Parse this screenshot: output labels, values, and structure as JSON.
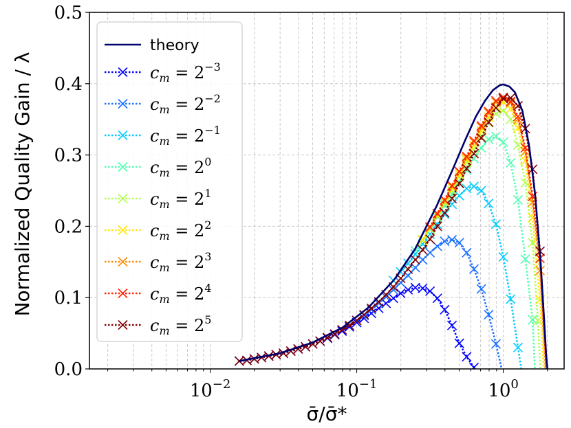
{
  "chart_data": {
    "type": "line",
    "xlabel": "σ̄/σ̄*",
    "ylabel": "Normalized Quality Gain / λ",
    "xscale": "log",
    "xlim": [
      0.0015,
      2.6
    ],
    "ylim": [
      0,
      0.5
    ],
    "x_ticks": [
      {
        "value": 0.01,
        "base": "10",
        "exp": "−2"
      },
      {
        "value": 0.1,
        "base": "10",
        "exp": "−1"
      },
      {
        "value": 1,
        "base": "10",
        "exp": "0"
      }
    ],
    "y_ticks": [
      {
        "value": 0.0,
        "label": "0.0"
      },
      {
        "value": 0.1,
        "label": "0.1"
      },
      {
        "value": 0.2,
        "label": "0.2"
      },
      {
        "value": 0.3,
        "label": "0.3"
      },
      {
        "value": 0.4,
        "label": "0.4"
      },
      {
        "value": 0.5,
        "label": "0.5"
      }
    ],
    "grid": true,
    "legend_position": "top-left",
    "theory": {
      "name": "theory",
      "color": "#00006e",
      "x": [
        0.0158,
        0.03,
        0.05,
        0.08,
        0.12,
        0.18,
        0.25,
        0.35,
        0.45,
        0.55,
        0.65,
        0.75,
        0.85,
        0.95,
        1.0,
        1.1,
        1.2,
        1.35,
        1.5,
        1.65,
        1.8,
        1.9,
        1.96,
        2.0
      ],
      "y": [
        0.011,
        0.022,
        0.037,
        0.058,
        0.086,
        0.125,
        0.168,
        0.228,
        0.279,
        0.321,
        0.354,
        0.376,
        0.391,
        0.398,
        0.399,
        0.396,
        0.388,
        0.362,
        0.313,
        0.244,
        0.147,
        0.068,
        0.02,
        0.0
      ]
    },
    "series": [
      {
        "name_base": "2",
        "name_exp": "−3",
        "color": "#0000ff",
        "x": [
          0.0158,
          0.0178,
          0.02,
          0.0224,
          0.0251,
          0.0282,
          0.0316,
          0.0355,
          0.0398,
          0.0447,
          0.0501,
          0.0562,
          0.0631,
          0.0708,
          0.0794,
          0.0891,
          0.1,
          0.1122,
          0.1259,
          0.1413,
          0.1585,
          0.1778,
          0.1995,
          0.2239,
          0.2512,
          0.2818,
          0.3162,
          0.3548,
          0.3981,
          0.4467,
          0.5012,
          0.5623,
          0.631,
          0.7079
        ],
        "y": [
          0.011,
          0.012,
          0.014,
          0.016,
          0.018,
          0.02,
          0.022,
          0.025,
          0.028,
          0.031,
          0.035,
          0.039,
          0.043,
          0.048,
          0.053,
          0.059,
          0.065,
          0.071,
          0.078,
          0.085,
          0.092,
          0.099,
          0.106,
          0.111,
          0.114,
          0.113,
          0.109,
          0.099,
          0.083,
          0.061,
          0.036,
          0.017,
          0.002,
          -0.01
        ]
      },
      {
        "name_base": "2",
        "name_exp": "−2",
        "color": "#1a70ff",
        "x": [
          0.1,
          0.1122,
          0.1259,
          0.1413,
          0.1585,
          0.1778,
          0.1995,
          0.2239,
          0.2512,
          0.2818,
          0.3162,
          0.3548,
          0.3981,
          0.4467,
          0.5012,
          0.5623,
          0.631,
          0.7079,
          0.7943,
          0.8913,
          1.0
        ],
        "y": [
          0.068,
          0.075,
          0.083,
          0.092,
          0.101,
          0.111,
          0.121,
          0.131,
          0.142,
          0.153,
          0.163,
          0.172,
          0.179,
          0.181,
          0.177,
          0.163,
          0.14,
          0.112,
          0.076,
          0.035,
          -0.01
        ]
      },
      {
        "name_base": "2",
        "name_exp": "−1",
        "color": "#00ccff",
        "x": [
          0.1778,
          0.1995,
          0.2239,
          0.2512,
          0.2818,
          0.3162,
          0.3548,
          0.3981,
          0.4467,
          0.5012,
          0.5623,
          0.631,
          0.7079,
          0.7943,
          0.8913,
          1.0,
          1.122,
          1.259,
          1.35
        ],
        "y": [
          0.124,
          0.136,
          0.148,
          0.161,
          0.175,
          0.189,
          0.203,
          0.217,
          0.231,
          0.243,
          0.253,
          0.256,
          0.25,
          0.232,
          0.203,
          0.157,
          0.098,
          0.03,
          -0.01
        ]
      },
      {
        "name_base": "2",
        "name_exp": "0",
        "color": "#4dffb0",
        "x": [
          0.2512,
          0.2818,
          0.3162,
          0.3548,
          0.3981,
          0.4467,
          0.5012,
          0.5623,
          0.631,
          0.7079,
          0.7943,
          0.8913,
          1.0,
          1.122,
          1.259,
          1.413,
          1.585,
          1.65
        ],
        "y": [
          0.166,
          0.181,
          0.196,
          0.213,
          0.229,
          0.245,
          0.262,
          0.279,
          0.295,
          0.31,
          0.322,
          0.326,
          0.318,
          0.289,
          0.237,
          0.154,
          0.069,
          -0.01
        ]
      },
      {
        "name_base": "2",
        "name_exp": "1",
        "color": "#b0ff4d",
        "x": [
          0.2818,
          0.3162,
          0.3548,
          0.3981,
          0.4467,
          0.5012,
          0.5623,
          0.631,
          0.7079,
          0.7943,
          0.8913,
          1.0,
          1.122,
          1.259,
          1.413,
          1.585,
          1.72,
          1.8
        ],
        "y": [
          0.18,
          0.197,
          0.214,
          0.232,
          0.25,
          0.269,
          0.289,
          0.308,
          0.326,
          0.345,
          0.358,
          0.362,
          0.35,
          0.314,
          0.261,
          0.177,
          0.068,
          -0.01
        ]
      },
      {
        "name_base": "2",
        "name_exp": "2",
        "color": "#ffe600",
        "x": [
          0.2818,
          0.3162,
          0.3548,
          0.3981,
          0.4467,
          0.5012,
          0.5623,
          0.631,
          0.7079,
          0.7943,
          0.8913,
          1.0,
          1.122,
          1.259,
          1.413,
          1.585,
          1.78,
          1.9
        ],
        "y": [
          0.181,
          0.198,
          0.216,
          0.235,
          0.254,
          0.273,
          0.293,
          0.313,
          0.334,
          0.353,
          0.368,
          0.374,
          0.365,
          0.338,
          0.292,
          0.212,
          0.097,
          -0.01
        ]
      },
      {
        "name_base": "2",
        "name_exp": "3",
        "color": "#ff8c00",
        "x": [
          0.3162,
          0.3548,
          0.3981,
          0.4467,
          0.5012,
          0.5623,
          0.631,
          0.7079,
          0.7943,
          0.8913,
          1.0,
          1.122,
          1.259,
          1.413,
          1.585,
          1.78,
          1.95
        ],
        "y": [
          0.198,
          0.217,
          0.236,
          0.256,
          0.276,
          0.296,
          0.318,
          0.339,
          0.359,
          0.374,
          0.38,
          0.373,
          0.35,
          0.305,
          0.234,
          0.138,
          -0.01
        ]
      },
      {
        "name_base": "2",
        "name_exp": "4",
        "color": "#ff2200",
        "x": [
          0.3162,
          0.3548,
          0.3981,
          0.4467,
          0.5012,
          0.5623,
          0.631,
          0.7079,
          0.7943,
          0.8913,
          1.0,
          1.122,
          1.259,
          1.413,
          1.585,
          1.78,
          1.98
        ],
        "y": [
          0.199,
          0.218,
          0.237,
          0.257,
          0.277,
          0.298,
          0.32,
          0.341,
          0.361,
          0.376,
          0.381,
          0.375,
          0.354,
          0.31,
          0.242,
          0.155,
          -0.01
        ]
      },
      {
        "name_base": "2",
        "name_exp": "5",
        "color": "#800000",
        "x": [
          0.0158,
          0.0178,
          0.02,
          0.0224,
          0.0251,
          0.0282,
          0.0316,
          0.0355,
          0.0398,
          0.0447,
          0.0501,
          0.0562,
          0.0631,
          0.0708,
          0.0794,
          0.0891,
          0.1,
          0.1122,
          0.1259,
          0.1413,
          0.1585,
          0.1778,
          0.1995,
          0.2239,
          0.2512,
          0.2818,
          0.3162,
          0.3548,
          0.3981,
          0.4467,
          0.5012,
          0.5623,
          0.631,
          0.7079,
          0.7943,
          0.8913,
          1.0,
          1.122,
          1.259,
          1.413,
          1.585,
          1.78,
          2.0
        ],
        "y": [
          0.011,
          0.012,
          0.014,
          0.016,
          0.018,
          0.02,
          0.022,
          0.025,
          0.028,
          0.031,
          0.035,
          0.039,
          0.044,
          0.049,
          0.055,
          0.061,
          0.068,
          0.076,
          0.085,
          0.094,
          0.104,
          0.115,
          0.127,
          0.14,
          0.153,
          0.167,
          0.182,
          0.2,
          0.219,
          0.239,
          0.26,
          0.281,
          0.302,
          0.324,
          0.346,
          0.366,
          0.379,
          0.38,
          0.369,
          0.337,
          0.28,
          0.165,
          -0.01
        ]
      }
    ],
    "legend_var": "c",
    "legend_sub": "m",
    "legend_eq": "="
  }
}
